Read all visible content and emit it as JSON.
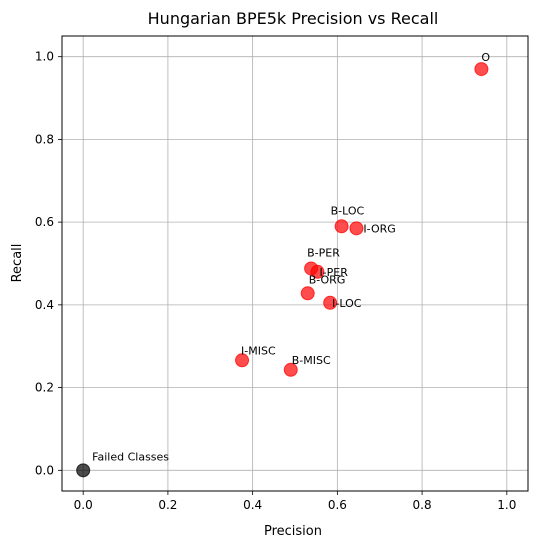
{
  "chart_data": {
    "type": "scatter",
    "title": "Hungarian BPE5k Precision vs Recall",
    "xlabel": "Precision",
    "ylabel": "Recall",
    "xlim": [
      -0.05,
      1.05
    ],
    "ylim": [
      -0.05,
      1.05
    ],
    "xticks": [
      0.0,
      0.2,
      0.4,
      0.6,
      0.8,
      1.0
    ],
    "yticks": [
      0.0,
      0.2,
      0.4,
      0.6,
      0.8,
      1.0
    ],
    "xtick_labels": [
      "0.0",
      "0.2",
      "0.4",
      "0.6",
      "0.8",
      "1.0"
    ],
    "ytick_labels": [
      "0.0",
      "0.2",
      "0.4",
      "0.6",
      "0.8",
      "1.0"
    ],
    "grid": true,
    "colors": {
      "class_point": "#ff0000",
      "failed_point": "#000000",
      "grid": "#b0b0b0"
    },
    "points": [
      {
        "label": "O",
        "x": 0.94,
        "y": 0.97,
        "status": "class"
      },
      {
        "label": "B-LOC",
        "x": 0.61,
        "y": 0.59,
        "status": "class"
      },
      {
        "label": "I-ORG",
        "x": 0.645,
        "y": 0.585,
        "status": "class"
      },
      {
        "label": "B-PER",
        "x": 0.538,
        "y": 0.488,
        "status": "class"
      },
      {
        "label": "I-PER",
        "x": 0.553,
        "y": 0.48,
        "status": "class"
      },
      {
        "label": "B-ORG",
        "x": 0.53,
        "y": 0.428,
        "status": "class"
      },
      {
        "label": "I-LOC",
        "x": 0.583,
        "y": 0.405,
        "status": "class"
      },
      {
        "label": "I-MISC",
        "x": 0.375,
        "y": 0.266,
        "status": "class"
      },
      {
        "label": "B-MISC",
        "x": 0.49,
        "y": 0.243,
        "status": "class"
      },
      {
        "label": "Failed Classes",
        "x": 0.0,
        "y": 0.0,
        "status": "failed"
      }
    ]
  }
}
